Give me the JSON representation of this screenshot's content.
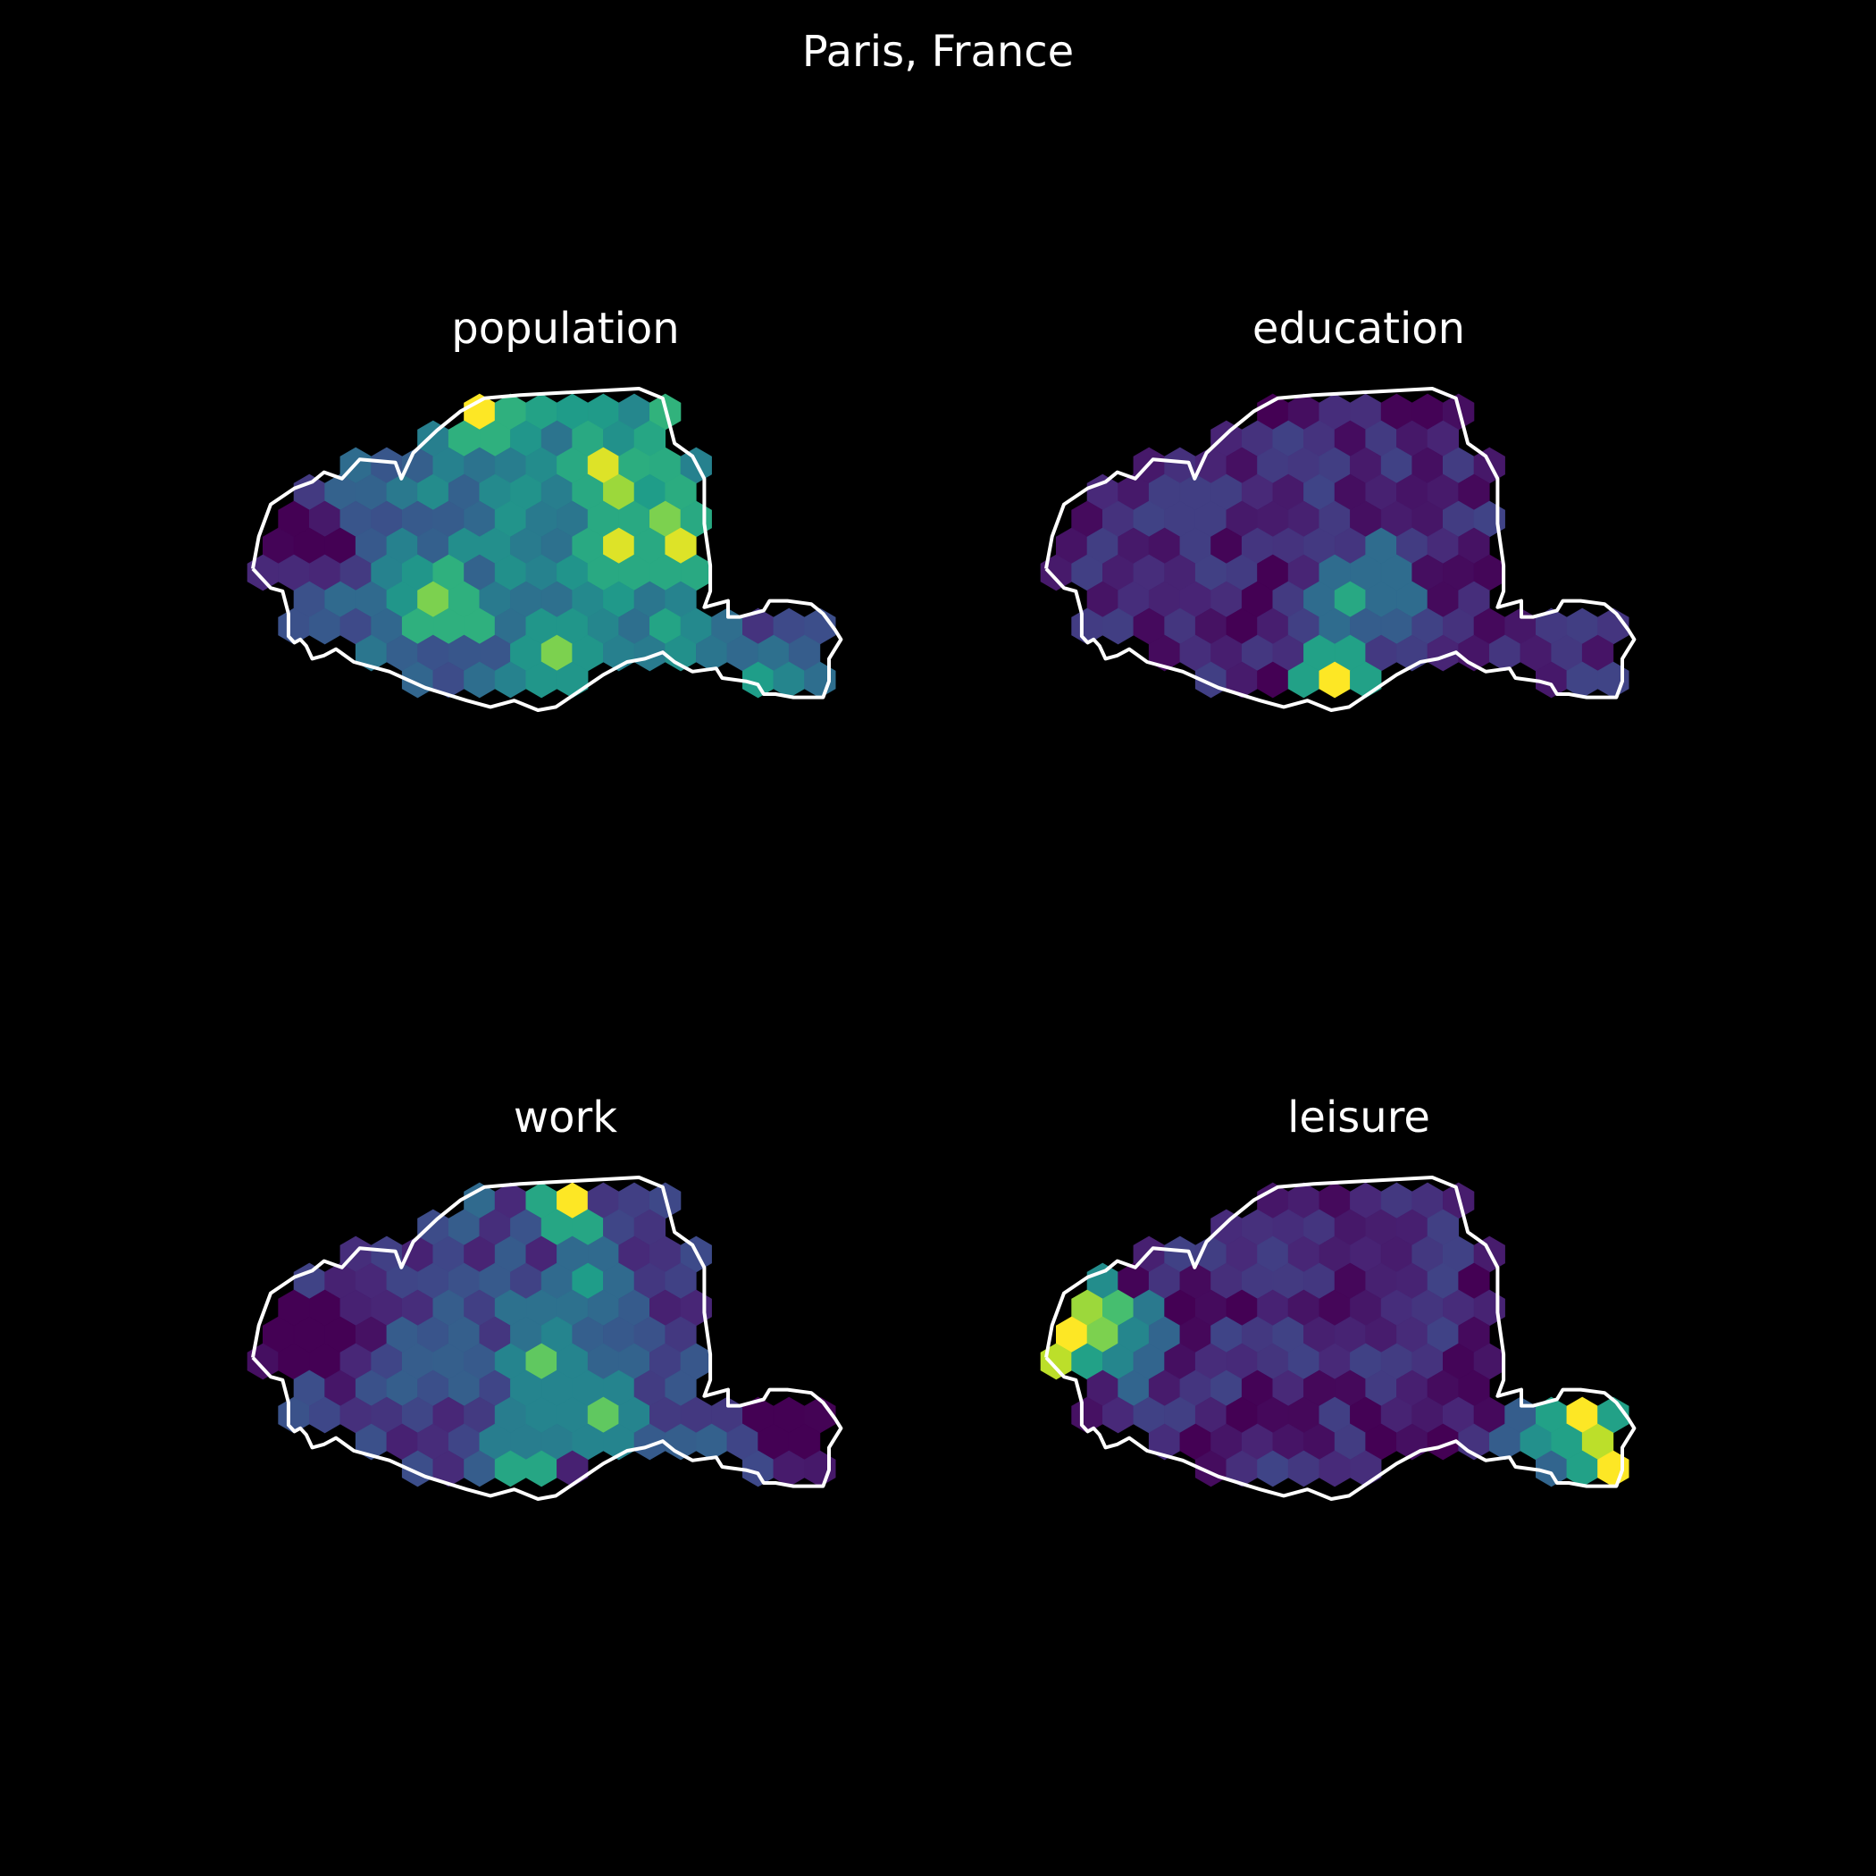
{
  "figure": {
    "title": "Paris, France"
  },
  "palette": {
    "background": "#000000",
    "outline": "#ffffff",
    "colormap": "viridis",
    "viridis_stops": [
      "#440154",
      "#482878",
      "#3e4989",
      "#31688e",
      "#26828e",
      "#1f9e89",
      "#35b779",
      "#6ece58",
      "#b5de2b",
      "#fde725"
    ]
  },
  "panels": [
    {
      "title": "population"
    },
    {
      "title": "education"
    },
    {
      "title": "work"
    },
    {
      "title": "leisure"
    }
  ],
  "chart_data": {
    "type": "heatmap",
    "subtype": "hexbin choropleth small multiples",
    "region": "Paris, France",
    "colormap": "viridis",
    "value_scale": "relative (0 = dark purple, 1 = yellow)",
    "panels": [
      {
        "name": "population",
        "pattern": "moderate-to-high values across most of the city; highest in north-east and a few central cells",
        "hotspots": [
          [
            0.4,
            0.08,
            1.0
          ],
          [
            0.58,
            0.27,
            0.95
          ],
          [
            0.62,
            0.35,
            0.85
          ],
          [
            0.6,
            0.48,
            0.95
          ],
          [
            0.7,
            0.5,
            0.95
          ],
          [
            0.33,
            0.67,
            1.0
          ],
          [
            0.3,
            0.63,
            0.8
          ],
          [
            0.52,
            0.82,
            0.8
          ],
          [
            0.7,
            0.4,
            0.8
          ]
        ],
        "baseline": 0.42,
        "gradient": "east",
        "low_regions": [
          [
            0.05,
            0.45
          ],
          [
            0.12,
            0.5
          ],
          [
            0.85,
            0.75
          ],
          [
            0.95,
            0.78
          ]
        ]
      },
      {
        "name": "education",
        "pattern": "low values nearly everywhere; one maximum cell on the southern edge and a small teal cluster south of centre",
        "hotspots": [
          [
            0.48,
            0.92,
            1.0
          ],
          [
            0.51,
            0.62,
            0.6
          ],
          [
            0.56,
            0.6,
            0.6
          ],
          [
            0.53,
            0.68,
            0.5
          ],
          [
            0.25,
            0.4,
            0.3
          ],
          [
            0.6,
            0.7,
            0.3
          ]
        ],
        "baseline": 0.1,
        "gradient": "none",
        "low_regions": []
      },
      {
        "name": "work",
        "pattern": "low-to-moderate values; peaks on the northern edge, a central-southern cluster and one cell on the southern edge",
        "hotspots": [
          [
            0.52,
            0.07,
            1.0
          ],
          [
            0.47,
            0.95,
            1.0
          ],
          [
            0.5,
            0.6,
            0.75
          ],
          [
            0.54,
            0.67,
            0.75
          ],
          [
            0.59,
            0.72,
            0.75
          ],
          [
            0.46,
            0.78,
            0.7
          ],
          [
            0.48,
            0.45,
            0.6
          ],
          [
            0.58,
            0.32,
            0.55
          ],
          [
            0.36,
            0.02,
            0.55
          ],
          [
            0.6,
            0.62,
            0.5
          ]
        ],
        "baseline": 0.2,
        "gradient": "none",
        "low_regions": [
          [
            0.05,
            0.45
          ],
          [
            0.12,
            0.5
          ],
          [
            0.9,
            0.78
          ]
        ]
      },
      {
        "name": "leisure",
        "pattern": "low values in the city core; high values at the far-west and far-east edges (Bois de Boulogne / Bois de Vincennes)",
        "hotspots": [
          [
            0.03,
            0.47,
            1.0
          ],
          [
            0.06,
            0.42,
            0.85
          ],
          [
            0.09,
            0.5,
            0.8
          ],
          [
            0.12,
            0.44,
            0.7
          ],
          [
            0.14,
            0.55,
            0.55
          ],
          [
            0.02,
            0.55,
            0.9
          ],
          [
            0.89,
            0.76,
            1.0
          ],
          [
            0.92,
            0.82,
            0.9
          ],
          [
            0.94,
            0.89,
            1.0
          ],
          [
            0.86,
            0.84,
            0.55
          ],
          [
            0.82,
            0.8,
            0.5
          ]
        ],
        "baseline": 0.1,
        "gradient": "none",
        "low_regions": []
      }
    ]
  }
}
